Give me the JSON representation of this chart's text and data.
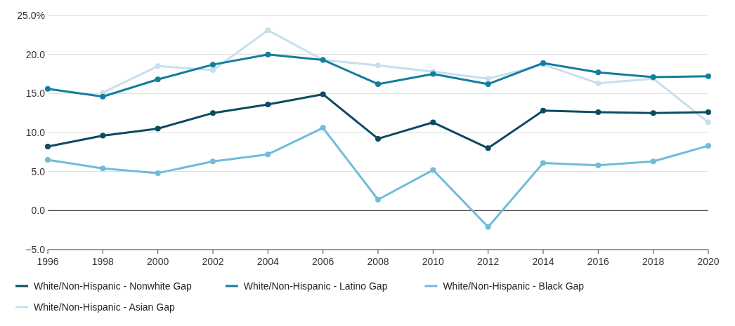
{
  "chart_data": {
    "type": "line",
    "x": [
      1996,
      1998,
      2000,
      2002,
      2004,
      2006,
      2008,
      2010,
      2012,
      2014,
      2016,
      2018,
      2020
    ],
    "xlim": [
      1996,
      2020
    ],
    "xticks": [
      1996,
      1998,
      2000,
      2002,
      2004,
      2006,
      2008,
      2010,
      2012,
      2014,
      2016,
      2018,
      2020
    ],
    "ylim": [
      -5,
      25
    ],
    "yticks": [
      {
        "value": -5,
        "label": "−5.0"
      },
      {
        "value": 0,
        "label": "0.0"
      },
      {
        "value": 5,
        "label": "5.0"
      },
      {
        "value": 10,
        "label": "10.0"
      },
      {
        "value": 15,
        "label": "15.0"
      },
      {
        "value": 20,
        "label": "20.0"
      },
      {
        "value": 25,
        "label": "25.0%"
      }
    ],
    "grid": "y",
    "legend": "bottom",
    "marker": "circle",
    "line_style": "solid",
    "series": [
      {
        "name": "White/Non-Hispanic - Nonwhite Gap",
        "color": "#0d4a63",
        "values": [
          8.2,
          9.6,
          10.5,
          12.5,
          13.6,
          14.9,
          9.2,
          11.3,
          8.0,
          12.8,
          12.6,
          12.5,
          12.6
        ]
      },
      {
        "name": "White/Non-Hispanic - Latino Gap",
        "color": "#127ea0",
        "values": [
          15.6,
          14.6,
          16.8,
          18.7,
          20.0,
          19.3,
          16.2,
          17.5,
          16.2,
          18.9,
          17.7,
          17.1,
          17.2
        ]
      },
      {
        "name": "White/Non-Hispanic - Black Gap",
        "color": "#6fbcd8",
        "values": [
          6.5,
          5.4,
          4.8,
          6.3,
          7.2,
          10.6,
          1.4,
          5.2,
          -2.1,
          6.1,
          5.8,
          6.3,
          8.3
        ]
      },
      {
        "name": "White/Non-Hispanic - Asian Gap",
        "color": "#c8dfec",
        "values": [
          null,
          15.1,
          18.5,
          18.0,
          23.1,
          19.3,
          18.6,
          17.8,
          16.9,
          18.7,
          16.3,
          16.9,
          11.3
        ]
      }
    ]
  }
}
